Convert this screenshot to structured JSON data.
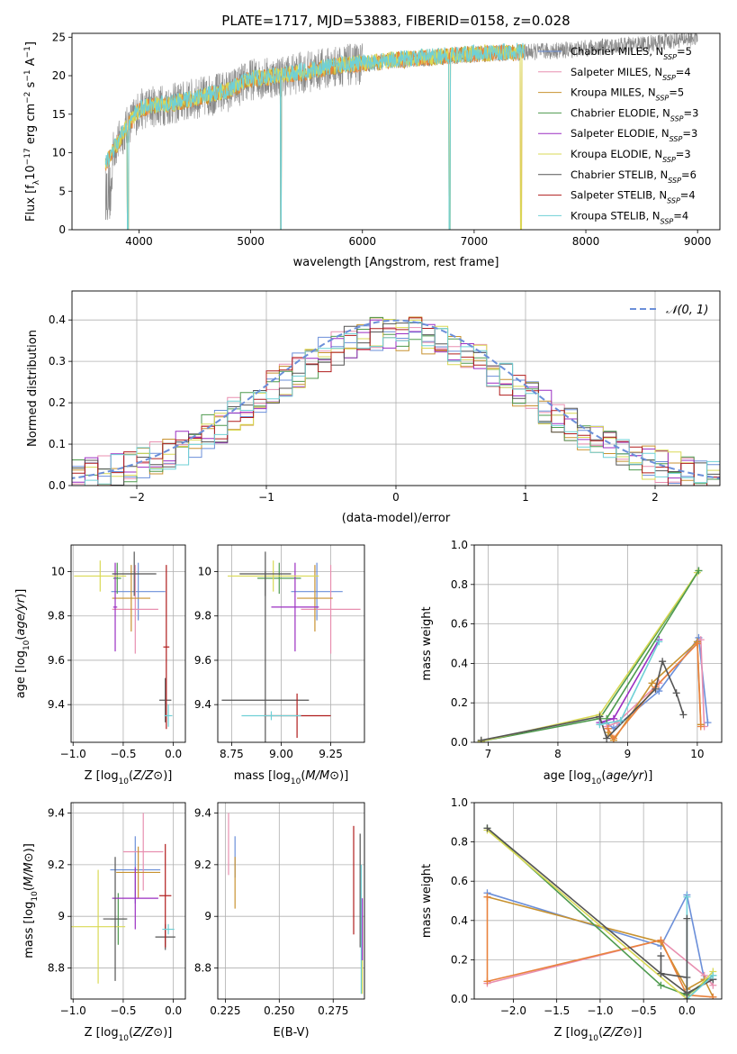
{
  "figure": {
    "title": "PLATE=1717, MJD=53883, FIBERID=0158, z=0.028"
  },
  "colors": {
    "cm": "#6b8fd9",
    "sm": "#e88fb0",
    "km": "#c89230",
    "ce": "#4e9a4e",
    "se": "#9b2fc2",
    "ke": "#d9d955",
    "cs": "#555555",
    "ss": "#b01c1c",
    "ks": "#6fd0d6",
    "orange": "#e9823c",
    "gauss": "#6b8fd9",
    "gray": "#888888"
  },
  "legend": [
    {
      "label": "Chabrier MILES, N",
      "sub": "SSP",
      "suffix": "=5",
      "color": "#6b8fd9"
    },
    {
      "label": "Salpeter MILES, N",
      "sub": "SSP",
      "suffix": "=4",
      "color": "#e88fb0"
    },
    {
      "label": "Kroupa MILES, N",
      "sub": "SSP",
      "suffix": "=5",
      "color": "#c89230"
    },
    {
      "label": "Chabrier ELODIE, N",
      "sub": "SSP",
      "suffix": "=3",
      "color": "#4e9a4e"
    },
    {
      "label": "Salpeter ELODIE, N",
      "sub": "SSP",
      "suffix": "=3",
      "color": "#9b2fc2"
    },
    {
      "label": "Kroupa ELODIE, N",
      "sub": "SSP",
      "suffix": "=3",
      "color": "#d9d955"
    },
    {
      "label": "Chabrier STELIB, N",
      "sub": "SSP",
      "suffix": "=6",
      "color": "#555555"
    },
    {
      "label": "Salpeter STELIB, N",
      "sub": "SSP",
      "suffix": "=4",
      "color": "#b01c1c"
    },
    {
      "label": "Kroupa STELIB, N",
      "sub": "SSP",
      "suffix": "=4",
      "color": "#6fd0d6"
    }
  ],
  "chart_data": [
    {
      "id": "spectrum",
      "type": "line",
      "xlabel": "wavelength [Angstrom, rest frame]",
      "ylabel": "Flux [fλ10⁻¹⁷ erg cm⁻² s⁻¹ A⁻¹]",
      "xlim": [
        3400,
        9200
      ],
      "ylim": [
        0,
        25.5
      ],
      "xticks": [
        4000,
        5000,
        6000,
        7000,
        8000,
        9000
      ],
      "yticks": [
        0,
        5,
        10,
        15,
        20,
        25
      ],
      "continuum_x": [
        3700,
        3800,
        3900,
        4000,
        4100,
        4300,
        4500,
        4800,
        5000,
        5200,
        5500,
        5800,
        6000,
        6300,
        6600,
        7000,
        7400,
        7800,
        8200,
        8600,
        9000
      ],
      "continuum_y": [
        8.5,
        11,
        13.5,
        15.5,
        16,
        16.3,
        17,
        18,
        19.5,
        19.8,
        20.5,
        21.3,
        21.5,
        22,
        22.3,
        22.8,
        23,
        23.3,
        23.8,
        24.2,
        25
      ],
      "data_range": [
        3700,
        9000
      ],
      "model_range": [
        3700,
        7450
      ],
      "model_dips": [
        3900,
        5270,
        6780,
        7420
      ]
    },
    {
      "id": "residuals",
      "type": "bar",
      "xlabel": "(data-model)/error",
      "ylabel": "Normed distribution",
      "xlim": [
        -2.5,
        2.5
      ],
      "ylim": [
        0,
        0.47
      ],
      "xticks": [
        -2,
        -1,
        0,
        1,
        2
      ],
      "yticks": [
        0.0,
        0.1,
        0.2,
        0.3,
        0.4
      ],
      "gaussian_label": "𝒩(0, 1)",
      "bin_width": 0.1
    },
    {
      "id": "age_vs_Z",
      "type": "scatter",
      "xlabel": "Z [log10(Z/Z⊙)]",
      "ylabel": "age  [log10(age/yr)]",
      "xlim": [
        -1.02,
        0.12
      ],
      "ylim": [
        9.23,
        10.12
      ],
      "xticks": [
        -1.0,
        -0.5,
        0.0
      ],
      "yticks": [
        9.4,
        9.6,
        9.8,
        10.0
      ],
      "xticklabels": [
        "−1.0",
        "−0.5",
        "0.0"
      ],
      "points": [
        {
          "c": "cm",
          "x": -0.35,
          "xe": 0.27,
          "y": 9.91,
          "ye": 0.13
        },
        {
          "c": "sm",
          "x": -0.38,
          "xe": 0.23,
          "y": 9.83,
          "ye": 0.2
        },
        {
          "c": "km",
          "x": -0.42,
          "xe": 0.19,
          "y": 9.88,
          "ye": 0.15
        },
        {
          "c": "ce",
          "x": -0.56,
          "xe": 0.04,
          "y": 9.97,
          "ye": 0.07
        },
        {
          "c": "se",
          "x": -0.58,
          "xe": 0.02,
          "y": 9.84,
          "ye": 0.2
        },
        {
          "c": "ke",
          "x": -0.73,
          "xe": 0.26,
          "y": 9.98,
          "ye": 0.07
        },
        {
          "c": "cs",
          "x": -0.08,
          "xe": 0.06,
          "y": 9.42,
          "ye": 0.1
        },
        {
          "c": "ss",
          "x": -0.07,
          "xe": 0.03,
          "y": 9.66,
          "ye": 0.37
        },
        {
          "c": "ks",
          "x": -0.05,
          "xe": 0.04,
          "y": 9.35,
          "ye": 0.05
        },
        {
          "c": "cs",
          "x": -0.39,
          "xe": 0.22,
          "y": 9.99,
          "ye": 0.1
        }
      ]
    },
    {
      "id": "age_vs_mass",
      "type": "scatter",
      "xlabel": "mass [log10(M/M⊙)]",
      "ylabel": "",
      "xlim": [
        8.68,
        9.42
      ],
      "ylim": [
        9.23,
        10.12
      ],
      "xticks": [
        8.75,
        9.0,
        9.25
      ],
      "yticks": [
        9.4,
        9.6,
        9.8,
        10.0
      ],
      "xticklabels": [
        "8.75",
        "9.00",
        "9.25"
      ],
      "points": [
        {
          "c": "cm",
          "x": 9.18,
          "xe": 0.13,
          "y": 9.91,
          "ye": 0.13
        },
        {
          "c": "sm",
          "x": 9.25,
          "xe": 0.15,
          "y": 9.83,
          "ye": 0.2
        },
        {
          "c": "km",
          "x": 9.17,
          "xe": 0.09,
          "y": 9.88,
          "ye": 0.15
        },
        {
          "c": "ce",
          "x": 8.99,
          "xe": 0.11,
          "y": 9.97,
          "ye": 0.07
        },
        {
          "c": "se",
          "x": 9.07,
          "xe": 0.12,
          "y": 9.84,
          "ye": 0.2
        },
        {
          "c": "ke",
          "x": 8.96,
          "xe": 0.23,
          "y": 9.98,
          "ye": 0.07
        },
        {
          "c": "cs",
          "x": 8.92,
          "xe": 0.22,
          "y": 9.42,
          "ye": 0.58
        },
        {
          "c": "ss",
          "x": 9.08,
          "xe": 0.17,
          "y": 9.35,
          "ye": 0.1
        },
        {
          "c": "ks",
          "x": 8.95,
          "xe": 0.15,
          "y": 9.35,
          "ye": 0.02
        },
        {
          "c": "cs",
          "x": 8.92,
          "xe": 0.13,
          "y": 9.99,
          "ye": 0.1
        }
      ]
    },
    {
      "id": "weight_vs_age",
      "type": "line",
      "xlabel": "age  [log10(age/yr)]",
      "ylabel": "mass weight",
      "xlim": [
        6.8,
        10.35
      ],
      "ylim": [
        0,
        1.0
      ],
      "xticks": [
        7,
        8,
        9,
        10
      ],
      "yticks": [
        0.0,
        0.2,
        0.4,
        0.6,
        0.8,
        1.0
      ],
      "series": [
        {
          "c": "cm",
          "x": [
            8.7,
            8.8,
            9.45,
            10.02,
            10.15
          ],
          "y": [
            0.1,
            0.07,
            0.26,
            0.53,
            0.1
          ]
        },
        {
          "c": "sm",
          "x": [
            8.7,
            8.85,
            9.45,
            10.05,
            10.1
          ],
          "y": [
            0.08,
            0.1,
            0.3,
            0.52,
            0.08
          ]
        },
        {
          "c": "km",
          "x": [
            8.72,
            8.8,
            9.35,
            10.0,
            10.05
          ],
          "y": [
            0.05,
            0.01,
            0.3,
            0.51,
            0.09
          ]
        },
        {
          "c": "orange",
          "x": [
            8.72,
            8.8,
            9.4,
            10.0,
            10.05
          ],
          "y": [
            0.07,
            0.02,
            0.28,
            0.5,
            0.08
          ]
        },
        {
          "c": "ce",
          "x": [
            6.9,
            8.6,
            10.02
          ],
          "y": [
            0.005,
            0.12,
            0.87
          ]
        },
        {
          "c": "se",
          "x": [
            8.6,
            8.8,
            9.45
          ],
          "y": [
            0.1,
            0.12,
            0.52
          ]
        },
        {
          "c": "ke",
          "x": [
            6.9,
            8.6,
            10.0
          ],
          "y": [
            0.005,
            0.14,
            0.86
          ]
        },
        {
          "c": "cs",
          "x": [
            6.9,
            8.6,
            8.7,
            9.4,
            9.5,
            9.7,
            9.8
          ],
          "y": [
            0.01,
            0.13,
            0.02,
            0.27,
            0.41,
            0.25,
            0.14
          ]
        },
        {
          "c": "ks",
          "x": [
            8.6,
            8.9,
            9.45
          ],
          "y": [
            0.09,
            0.11,
            0.51
          ]
        },
        {
          "c": "ce",
          "x": [
            8.7,
            10.02
          ],
          "y": [
            0.12,
            0.87
          ]
        }
      ]
    },
    {
      "id": "mass_vs_Z",
      "type": "scatter",
      "xlabel": "Z [log10(Z/Z⊙)]",
      "ylabel": "mass [log10(M/M⊙)]",
      "xlim": [
        -1.02,
        0.12
      ],
      "ylim": [
        8.68,
        9.44
      ],
      "xticks": [
        -1.0,
        -0.5,
        0.0
      ],
      "yticks": [
        8.8,
        9.0,
        9.2,
        9.4
      ],
      "xticklabels": [
        "−1.0",
        "−0.5",
        "0.0"
      ],
      "points": [
        {
          "c": "cm",
          "x": -0.38,
          "xe": 0.25,
          "y": 9.18,
          "ye": 0.13
        },
        {
          "c": "sm",
          "x": -0.3,
          "xe": 0.2,
          "y": 9.25,
          "ye": 0.15
        },
        {
          "c": "km",
          "x": -0.35,
          "xe": 0.22,
          "y": 9.17,
          "ye": 0.1
        },
        {
          "c": "ce",
          "x": -0.55,
          "xe": 0.08,
          "y": 8.99,
          "ye": 0.1
        },
        {
          "c": "se",
          "x": -0.38,
          "xe": 0.23,
          "y": 9.07,
          "ye": 0.12
        },
        {
          "c": "ke",
          "x": -0.75,
          "xe": 0.27,
          "y": 8.96,
          "ye": 0.22
        },
        {
          "c": "cs",
          "x": -0.08,
          "xe": 0.1,
          "y": 8.92,
          "ye": 0.05
        },
        {
          "c": "ss",
          "x": -0.08,
          "xe": 0.06,
          "y": 9.08,
          "ye": 0.2
        },
        {
          "c": "ks",
          "x": -0.05,
          "xe": 0.06,
          "y": 8.95,
          "ye": 0.02
        },
        {
          "c": "cs",
          "x": -0.58,
          "xe": 0.12,
          "y": 8.99,
          "ye": 0.24
        }
      ]
    },
    {
      "id": "mass_vs_EBV",
      "type": "scatter",
      "xlabel": "E(B-V)",
      "ylabel": "",
      "xlim": [
        0.2215,
        0.2895
      ],
      "ylim": [
        8.68,
        9.44
      ],
      "xticks": [
        0.225,
        0.25,
        0.275
      ],
      "yticks": [
        8.8,
        9.0,
        9.2,
        9.4
      ],
      "xticklabels": [
        "0.225",
        "0.250",
        "0.275"
      ],
      "points": [
        {
          "c": "cm",
          "x": 0.2295,
          "xe": 0,
          "y": 9.23,
          "ye": 0.08
        },
        {
          "c": "sm",
          "x": 0.2265,
          "xe": 0,
          "y": 9.28,
          "ye": 0.12
        },
        {
          "c": "km",
          "x": 0.2295,
          "xe": 0,
          "y": 9.13,
          "ye": 0.1
        },
        {
          "c": "ss",
          "x": 0.2845,
          "xe": 0,
          "y": 9.14,
          "ye": 0.21
        },
        {
          "c": "cs",
          "x": 0.2875,
          "xe": 0,
          "y": 9.1,
          "ye": 0.22
        },
        {
          "c": "ks",
          "x": 0.288,
          "xe": 0,
          "y": 8.95,
          "ye": 0.25
        },
        {
          "c": "ke",
          "x": 0.2885,
          "xe": 0,
          "y": 8.85,
          "ye": 0.15
        },
        {
          "c": "se",
          "x": 0.2885,
          "xe": 0,
          "y": 8.95,
          "ye": 0.12
        }
      ]
    },
    {
      "id": "weight_vs_Z",
      "type": "line",
      "xlabel": "Z [log10(Z/Z⊙)]",
      "ylabel": "mass weight",
      "xlim": [
        -2.45,
        0.4
      ],
      "ylim": [
        0,
        1.0
      ],
      "xticks": [
        -2.0,
        -1.5,
        -1.0,
        -0.5,
        0.0
      ],
      "yticks": [
        0.0,
        0.2,
        0.4,
        0.6,
        0.8,
        1.0
      ],
      "xticklabels": [
        "−2.0",
        "−1.5",
        "−1.0",
        "−0.5",
        "0.0"
      ],
      "series": [
        {
          "c": "cm",
          "x": [
            -2.3,
            -0.3,
            0.0,
            0.2,
            0.3
          ],
          "y": [
            0.54,
            0.27,
            0.53,
            0.1,
            0.1
          ]
        },
        {
          "c": "sm",
          "x": [
            -2.3,
            -0.3,
            0.2,
            0.3
          ],
          "y": [
            0.08,
            0.3,
            0.12,
            0.07
          ]
        },
        {
          "c": "km",
          "x": [
            -2.3,
            -0.3,
            0.0,
            0.2,
            0.3
          ],
          "y": [
            0.52,
            0.29,
            0.05,
            0.1,
            0.01
          ]
        },
        {
          "c": "orange",
          "x": [
            -2.3,
            -2.3,
            -0.3,
            0.0,
            0.3
          ],
          "y": [
            0.52,
            0.09,
            0.3,
            0.02,
            0.01
          ]
        },
        {
          "c": "ce",
          "x": [
            -2.3,
            -0.3,
            0.0,
            0.3
          ],
          "y": [
            0.87,
            0.07,
            0.02,
            0.12
          ]
        },
        {
          "c": "ke",
          "x": [
            -2.3,
            0.0,
            0.3
          ],
          "y": [
            0.86,
            0.0,
            0.14
          ]
        },
        {
          "c": "cs",
          "x": [
            -2.3,
            -0.3,
            0.0,
            0.3
          ],
          "y": [
            0.87,
            0.13,
            0.03,
            0.1
          ]
        },
        {
          "c": "cs",
          "x": [
            -0.3,
            -0.3,
            0.0
          ],
          "y": [
            0.22,
            0.13,
            0.11
          ]
        },
        {
          "c": "ks",
          "x": [
            0.0,
            0.0,
            0.3
          ],
          "y": [
            0.52,
            0.0,
            0.12
          ]
        },
        {
          "c": "cs",
          "x": [
            0.0,
            0.0
          ],
          "y": [
            0.41,
            0.0
          ]
        }
      ]
    }
  ]
}
